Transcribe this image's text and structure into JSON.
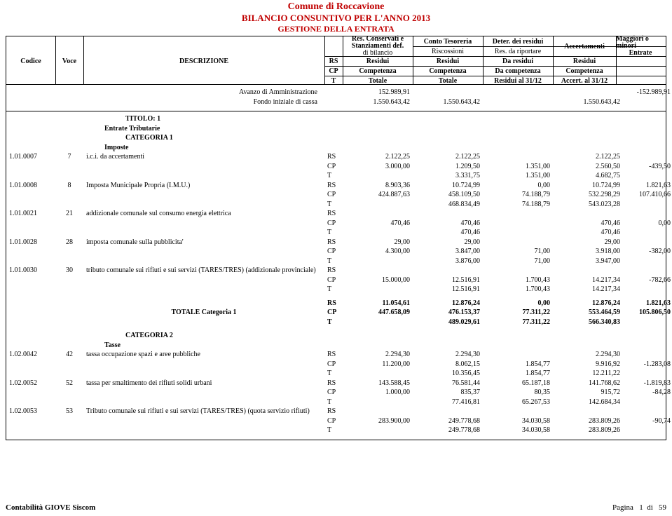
{
  "header": {
    "comune": "Comune di Roccavione",
    "bilancio": "BILANCIO CONSUNTIVO PER L'ANNO 2013",
    "gestione": "GESTIONE DELLA ENTRATA",
    "codice": "Codice",
    "voce": "Voce",
    "descrizione": "DESCRIZIONE",
    "rs": "RS",
    "cp": "CP",
    "t": "T",
    "stanz1": "Res. Conservati e",
    "stanz2": "Stanziamenti def.",
    "stanz3": "di  bilancio",
    "conto": "Conto Tesoreria",
    "risc": "Riscossioni",
    "deter": "Deter. dei residui",
    "resrip": "Res. da riportare",
    "accert": "Accertamenti",
    "maggiori": "Maggiori o minori",
    "entrate": "Entrate",
    "residui": "Residui",
    "daresidui": "Da residui",
    "competenza": "Competenza",
    "dacompetenza": "Da competenza",
    "totale": "Totale",
    "res3112": "Residui al 31/12",
    "acc3112": "Accert. al 31/12"
  },
  "avanzo": {
    "label1": "Avanzo di Amministrazione",
    "label2": "Fondo iniziale di cassa",
    "v1": "152.989,91",
    "v2": "-152.989,91",
    "f1": "1.550.643,42",
    "f2": "1.550.643,42",
    "f3": "1.550.643,42"
  },
  "titolo": "TITOLO: 1",
  "entrate_trib": "Entrate Tributarie",
  "cat1": "CATEGORIA 1",
  "imposte": "Imposte",
  "cat2": "CATEGORIA 2",
  "tasse": "Tasse",
  "tot_cat1": "TOTALE Categoria 1",
  "r": [
    {
      "code": "1.01.0007",
      "voce": "7",
      "desc": "i.c.i. da accertamenti",
      "rs": [
        "2.122,25",
        "2.122,25",
        "",
        "2.122,25",
        ""
      ],
      "cp": [
        "3.000,00",
        "1.209,50",
        "1.351,00",
        "2.560,50",
        "-439,50"
      ],
      "t": [
        "",
        "3.331,75",
        "1.351,00",
        "4.682,75",
        ""
      ]
    },
    {
      "code": "1.01.0008",
      "voce": "8",
      "desc": "Imposta Municipale Propria (I.M.U.)",
      "rs": [
        "8.903,36",
        "10.724,99",
        "0,00",
        "10.724,99",
        "1.821,63"
      ],
      "cp": [
        "424.887,63",
        "458.109,50",
        "74.188,79",
        "532.298,29",
        "107.410,66"
      ],
      "t": [
        "",
        "468.834,49",
        "74.188,79",
        "543.023,28",
        ""
      ]
    },
    {
      "code": "1.01.0021",
      "voce": "21",
      "desc": "addizionale comunale sul consumo energia elettrica",
      "rs": [
        "",
        "",
        "",
        "",
        ""
      ],
      "cp": [
        "470,46",
        "470,46",
        "",
        "470,46",
        "0,00"
      ],
      "t": [
        "",
        "470,46",
        "",
        "470,46",
        ""
      ]
    },
    {
      "code": "1.01.0028",
      "voce": "28",
      "desc": "imposta comunale sulla pubblicita'",
      "rs": [
        "29,00",
        "29,00",
        "",
        "29,00",
        ""
      ],
      "cp": [
        "4.300,00",
        "3.847,00",
        "71,00",
        "3.918,00",
        "-382,00"
      ],
      "t": [
        "",
        "3.876,00",
        "71,00",
        "3.947,00",
        ""
      ]
    },
    {
      "code": "1.01.0030",
      "voce": "30",
      "desc": "tributo comunale sui rifiuti e sui servizi (TARES/TRES) (addizionale provinciale)",
      "rs": [
        "",
        "",
        "",
        "",
        ""
      ],
      "cp": [
        "15.000,00",
        "12.516,91",
        "1.700,43",
        "14.217,34",
        "-782,66"
      ],
      "t": [
        "",
        "12.516,91",
        "1.700,43",
        "14.217,34",
        ""
      ]
    }
  ],
  "tot1": {
    "rs": [
      "11.054,61",
      "12.876,24",
      "0,00",
      "12.876,24",
      "1.821,63"
    ],
    "cp": [
      "447.658,09",
      "476.153,37",
      "77.311,22",
      "553.464,59",
      "105.806,50"
    ],
    "t": [
      "",
      "489.029,61",
      "77.311,22",
      "566.340,83",
      ""
    ]
  },
  "r2": [
    {
      "code": "1.02.0042",
      "voce": "42",
      "desc": "tassa occupazione spazi e aree pubbliche",
      "rs": [
        "2.294,30",
        "2.294,30",
        "",
        "2.294,30",
        ""
      ],
      "cp": [
        "11.200,00",
        "8.062,15",
        "1.854,77",
        "9.916,92",
        "-1.283,08"
      ],
      "t": [
        "",
        "10.356,45",
        "1.854,77",
        "12.211,22",
        ""
      ]
    },
    {
      "code": "1.02.0052",
      "voce": "52",
      "desc": "tassa per smaltimento dei rifiuti solidi urbani",
      "rs": [
        "143.588,45",
        "76.581,44",
        "65.187,18",
        "141.768,62",
        "-1.819,83"
      ],
      "cp": [
        "1.000,00",
        "835,37",
        "80,35",
        "915,72",
        "-84,28"
      ],
      "t": [
        "",
        "77.416,81",
        "65.267,53",
        "142.684,34",
        ""
      ]
    },
    {
      "code": "1.02.0053",
      "voce": "53",
      "desc": "Tributo comunale sui rifiuti e sui servizi (TARES/TRES) (quota servizio rifiuti)",
      "rs": [
        "",
        "",
        "",
        "",
        ""
      ],
      "cp": [
        "283.900,00",
        "249.778,68",
        "34.030,58",
        "283.809,26",
        "-90,74"
      ],
      "t": [
        "",
        "249.778,68",
        "34.030,58",
        "283.809,26",
        ""
      ]
    }
  ],
  "footer": {
    "left": "Contabilità GIOVE Siscom",
    "right_label": "Pagina",
    "page": "1",
    "di": "di",
    "total": "59"
  }
}
